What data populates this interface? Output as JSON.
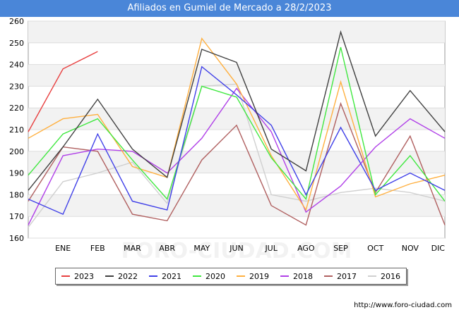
{
  "title": "Afiliados en Gumiel de Mercado a 28/2/2023",
  "credit": "http://www.foro-ciudad.com",
  "watermark": "FORO-CIUDAD.COM",
  "chart_data": {
    "type": "line",
    "categories": [
      "",
      "ENE",
      "FEB",
      "MAR",
      "ABR",
      "MAY",
      "JUN",
      "JUL",
      "AGO",
      "SEP",
      "OCT",
      "NOV",
      "DIC"
    ],
    "ylim": [
      160,
      260
    ],
    "yticks": [
      160,
      170,
      180,
      190,
      200,
      210,
      220,
      230,
      240,
      250,
      260
    ],
    "grid": "horizontal",
    "legend_position": "bottom",
    "series": [
      {
        "name": "2023",
        "color": "#e84040",
        "values": [
          209,
          238,
          246,
          null,
          null,
          null,
          null,
          null,
          null,
          null,
          null,
          null,
          null
        ]
      },
      {
        "name": "2022",
        "color": "#404040",
        "values": [
          182,
          202,
          224,
          201,
          188,
          247,
          241,
          201,
          191,
          255,
          207,
          228,
          209
        ]
      },
      {
        "name": "2021",
        "color": "#4040e8",
        "values": [
          178,
          171,
          208,
          177,
          173,
          239,
          226,
          212,
          180,
          211,
          182,
          190,
          182
        ]
      },
      {
        "name": "2020",
        "color": "#40e840",
        "values": [
          189,
          208,
          215,
          196,
          178,
          230,
          225,
          197,
          178,
          248,
          180,
          198,
          177
        ]
      },
      {
        "name": "2019",
        "color": "#ffb040",
        "values": [
          206,
          215,
          217,
          193,
          188,
          252,
          231,
          198,
          173,
          232,
          179,
          185,
          189
        ]
      },
      {
        "name": "2018",
        "color": "#b040e8",
        "values": [
          166,
          198,
          201,
          200,
          190,
          206,
          229,
          209,
          172,
          184,
          202,
          215,
          206
        ]
      },
      {
        "name": "2017",
        "color": "#b06060",
        "values": [
          177,
          202,
          200,
          171,
          168,
          196,
          212,
          175,
          166,
          222,
          181,
          207,
          166
        ]
      },
      {
        "name": "2016",
        "color": "#d0d0d0",
        "values": [
          165,
          186,
          190,
          195,
          176,
          230,
          231,
          180,
          177,
          181,
          183,
          181,
          177
        ]
      }
    ]
  }
}
